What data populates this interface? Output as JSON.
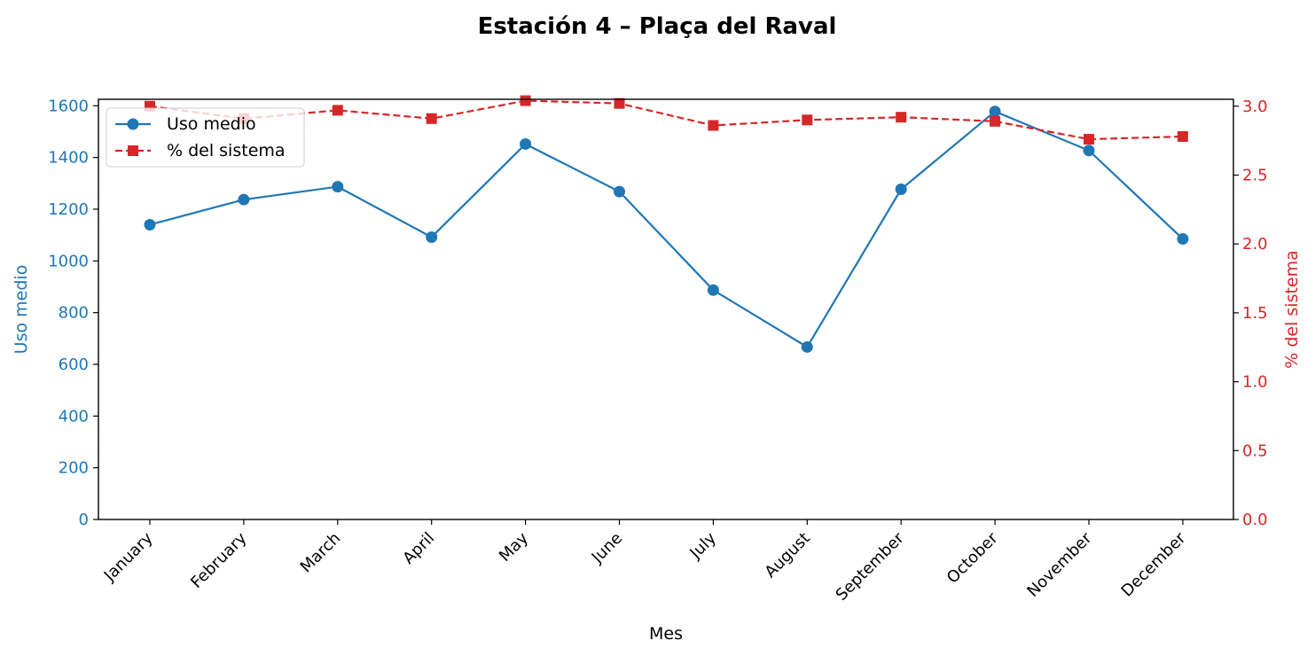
{
  "chart_data": {
    "type": "line",
    "title": "Estación 4 – Plaça del Raval",
    "xlabel": "Mes",
    "categories": [
      "January",
      "February",
      "March",
      "April",
      "May",
      "June",
      "July",
      "August",
      "September",
      "October",
      "November",
      "December"
    ],
    "y_left": {
      "label": "Uso medio",
      "range": [
        0,
        1625
      ],
      "ticks": [
        0,
        200,
        400,
        600,
        800,
        1000,
        1200,
        1400,
        1600
      ],
      "color": "#1f77b4"
    },
    "y_right": {
      "label": "% del sistema",
      "range": [
        0,
        3.05
      ],
      "ticks": [
        "0.0",
        "0.5",
        "1.0",
        "1.5",
        "2.0",
        "2.5",
        "3.0"
      ],
      "color": "#d62728"
    },
    "series": [
      {
        "name": "Uso medio",
        "axis": "left",
        "color": "#1f77b4",
        "line_style": "solid",
        "marker": "circle",
        "values": [
          1140,
          1237,
          1287,
          1092,
          1452,
          1268,
          887,
          667,
          1277,
          1578,
          1427,
          1085
        ]
      },
      {
        "name": "% del sistema",
        "axis": "right",
        "color": "#d62728",
        "line_style": "dashed",
        "marker": "square",
        "values": [
          3.0,
          2.91,
          2.97,
          2.91,
          3.04,
          3.02,
          2.86,
          2.9,
          2.92,
          2.89,
          2.76,
          2.78
        ]
      }
    ],
    "legend_position": "top-left",
    "grid": false
  }
}
